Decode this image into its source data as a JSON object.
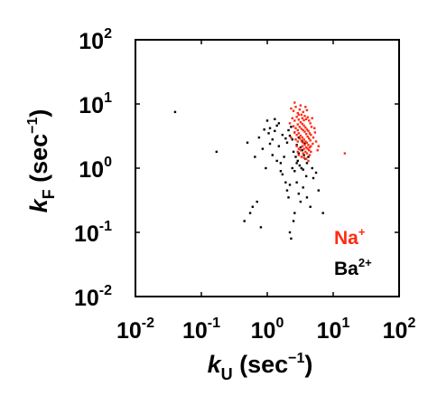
{
  "chart_data": {
    "type": "scatter",
    "title": "",
    "xscale": "log",
    "yscale": "log",
    "xlim": [
      0.01,
      100
    ],
    "ylim": [
      0.01,
      100
    ],
    "grid": false,
    "legend_placement": "bottom-right",
    "xlabel": {
      "var": "k",
      "sub": "U",
      "unit_pre": " (sec",
      "unit_sup": "−1",
      "unit_post": ")"
    },
    "ylabel": {
      "var": "k",
      "sub": "F",
      "unit_pre": " (sec",
      "unit_sup": "−1",
      "unit_post": ")"
    },
    "xticks": [
      {
        "base": "10",
        "exp": "-2"
      },
      {
        "base": "10",
        "exp": "-1"
      },
      {
        "base": "10",
        "exp": "0"
      },
      {
        "base": "10",
        "exp": "1"
      },
      {
        "base": "10",
        "exp": "2"
      }
    ],
    "yticks": [
      {
        "base": "10",
        "exp": "-2"
      },
      {
        "base": "10",
        "exp": "-1"
      },
      {
        "base": "10",
        "exp": "0"
      },
      {
        "base": "10",
        "exp": "1"
      },
      {
        "base": "10",
        "exp": "2"
      }
    ],
    "series": [
      {
        "name": "Ba2+",
        "label_base": "Ba",
        "label_sup": "2+",
        "color": "#000000",
        "points": [
          [
            0.04,
            7.5
          ],
          [
            0.17,
            1.8
          ],
          [
            0.45,
            0.15
          ],
          [
            0.55,
            0.2
          ],
          [
            0.6,
            0.25
          ],
          [
            0.7,
            0.3
          ],
          [
            0.8,
            0.12
          ],
          [
            0.5,
            2.5
          ],
          [
            0.65,
            1.5
          ],
          [
            0.75,
            3.0
          ],
          [
            0.85,
            2.0
          ],
          [
            0.9,
            4.0
          ],
          [
            1.0,
            5.5
          ],
          [
            1.05,
            3.5
          ],
          [
            1.1,
            4.2
          ],
          [
            1.2,
            2.8
          ],
          [
            1.3,
            3.8
          ],
          [
            1.4,
            4.6
          ],
          [
            1.5,
            2.2
          ],
          [
            1.6,
            1.2
          ],
          [
            1.7,
            0.8
          ],
          [
            1.8,
            1.5
          ],
          [
            1.9,
            0.6
          ],
          [
            2.0,
            0.45
          ],
          [
            2.1,
            0.35
          ],
          [
            2.2,
            0.1
          ],
          [
            2.3,
            0.08
          ],
          [
            2.5,
            0.15
          ],
          [
            2.6,
            0.2
          ],
          [
            2.8,
            0.6
          ],
          [
            3.0,
            0.4
          ],
          [
            3.2,
            0.3
          ],
          [
            3.5,
            0.5
          ],
          [
            4.0,
            0.35
          ],
          [
            4.5,
            0.25
          ],
          [
            5.0,
            0.7
          ],
          [
            6.0,
            0.45
          ],
          [
            7.0,
            0.2
          ],
          [
            2.0,
            2.5
          ],
          [
            2.2,
            3.2
          ],
          [
            2.4,
            2.8
          ],
          [
            2.6,
            3.6
          ],
          [
            2.8,
            2.3
          ],
          [
            3.0,
            3.0
          ],
          [
            3.2,
            2.1
          ],
          [
            3.4,
            1.9
          ],
          [
            3.6,
            1.6
          ],
          [
            3.8,
            1.4
          ],
          [
            4.0,
            1.2
          ],
          [
            2.5,
            1.8
          ],
          [
            2.7,
            1.5
          ],
          [
            2.9,
            1.3
          ],
          [
            3.1,
            1.1
          ],
          [
            3.3,
            1.0
          ],
          [
            3.5,
            0.95
          ],
          [
            2.3,
            4.4
          ],
          [
            2.1,
            3.9
          ],
          [
            1.9,
            2.9
          ],
          [
            1.7,
            3.3
          ],
          [
            1.5,
            5.0
          ],
          [
            1.3,
            5.8
          ],
          [
            2.4,
            1.0
          ],
          [
            2.6,
            0.9
          ],
          [
            2.8,
            1.2
          ],
          [
            3.0,
            1.7
          ],
          [
            3.4,
            2.6
          ],
          [
            3.7,
            2.4
          ],
          [
            4.2,
            1.5
          ],
          [
            4.8,
            1.0
          ],
          [
            5.5,
            0.85
          ],
          [
            3.9,
            0.75
          ],
          [
            2.2,
            0.55
          ],
          [
            1.6,
            0.9
          ],
          [
            1.4,
            1.3
          ],
          [
            1.2,
            1.6
          ],
          [
            1.1,
            2.4
          ],
          [
            0.95,
            1.0
          ]
        ]
      },
      {
        "name": "Na+",
        "label_base": "Na",
        "label_sup": "+",
        "color": "#ff2a12",
        "points": [
          [
            2.3,
            8.5
          ],
          [
            2.5,
            7.8
          ],
          [
            2.7,
            9.0
          ],
          [
            2.9,
            7.2
          ],
          [
            3.1,
            8.2
          ],
          [
            3.3,
            6.8
          ],
          [
            3.5,
            7.5
          ],
          [
            3.7,
            6.5
          ],
          [
            3.9,
            5.8
          ],
          [
            4.1,
            6.2
          ],
          [
            4.3,
            5.5
          ],
          [
            4.5,
            5.0
          ],
          [
            2.4,
            6.0
          ],
          [
            2.6,
            5.5
          ],
          [
            2.8,
            6.3
          ],
          [
            3.0,
            5.7
          ],
          [
            3.2,
            5.2
          ],
          [
            3.4,
            4.9
          ],
          [
            3.6,
            4.6
          ],
          [
            3.8,
            4.3
          ],
          [
            4.0,
            4.0
          ],
          [
            4.2,
            3.8
          ],
          [
            4.4,
            3.5
          ],
          [
            4.6,
            3.3
          ],
          [
            2.5,
            4.5
          ],
          [
            2.7,
            4.2
          ],
          [
            2.9,
            4.8
          ],
          [
            3.1,
            4.4
          ],
          [
            3.3,
            4.1
          ],
          [
            3.5,
            3.9
          ],
          [
            3.7,
            3.7
          ],
          [
            3.9,
            3.4
          ],
          [
            4.1,
            3.1
          ],
          [
            4.3,
            2.9
          ],
          [
            4.5,
            2.7
          ],
          [
            2.6,
            3.6
          ],
          [
            2.8,
            3.3
          ],
          [
            3.0,
            3.5
          ],
          [
            3.2,
            3.2
          ],
          [
            3.4,
            3.0
          ],
          [
            3.6,
            2.8
          ],
          [
            3.8,
            2.6
          ],
          [
            4.0,
            2.5
          ],
          [
            4.2,
            2.3
          ],
          [
            4.4,
            2.1
          ],
          [
            2.7,
            2.8
          ],
          [
            2.9,
            2.6
          ],
          [
            3.1,
            2.9
          ],
          [
            3.3,
            2.7
          ],
          [
            3.5,
            2.5
          ],
          [
            3.7,
            2.3
          ],
          [
            3.9,
            2.1
          ],
          [
            4.1,
            2.0
          ],
          [
            4.3,
            1.9
          ],
          [
            4.6,
            1.8
          ],
          [
            2.8,
            2.2
          ],
          [
            3.0,
            2.0
          ],
          [
            3.2,
            1.9
          ],
          [
            3.4,
            2.2
          ],
          [
            3.6,
            2.0
          ],
          [
            3.8,
            1.8
          ],
          [
            4.0,
            1.7
          ],
          [
            4.4,
            1.6
          ],
          [
            3.0,
            1.6
          ],
          [
            3.3,
            1.5
          ],
          [
            3.6,
            1.45
          ],
          [
            3.9,
            1.4
          ],
          [
            4.2,
            1.3
          ],
          [
            2.9,
            1.8
          ],
          [
            3.5,
            1.7
          ],
          [
            5.0,
            3.0
          ],
          [
            5.5,
            2.6
          ],
          [
            6.0,
            2.2
          ],
          [
            5.2,
            4.2
          ],
          [
            4.8,
            6.0
          ],
          [
            5.8,
            1.9
          ],
          [
            15.0,
            1.7
          ],
          [
            3.2,
            9.5
          ],
          [
            4.0,
            8.0
          ],
          [
            2.6,
            10.5
          ],
          [
            3.8,
            9.0
          ],
          [
            2.2,
            5.0
          ],
          [
            2.3,
            3.0
          ],
          [
            4.7,
            4.4
          ],
          [
            5.3,
            3.6
          ],
          [
            3.4,
            6.0
          ],
          [
            3.6,
            5.6
          ],
          [
            3.0,
            6.8
          ],
          [
            2.9,
            3.9
          ],
          [
            4.9,
            2.4
          ],
          [
            4.6,
            2.2
          ]
        ]
      }
    ]
  }
}
